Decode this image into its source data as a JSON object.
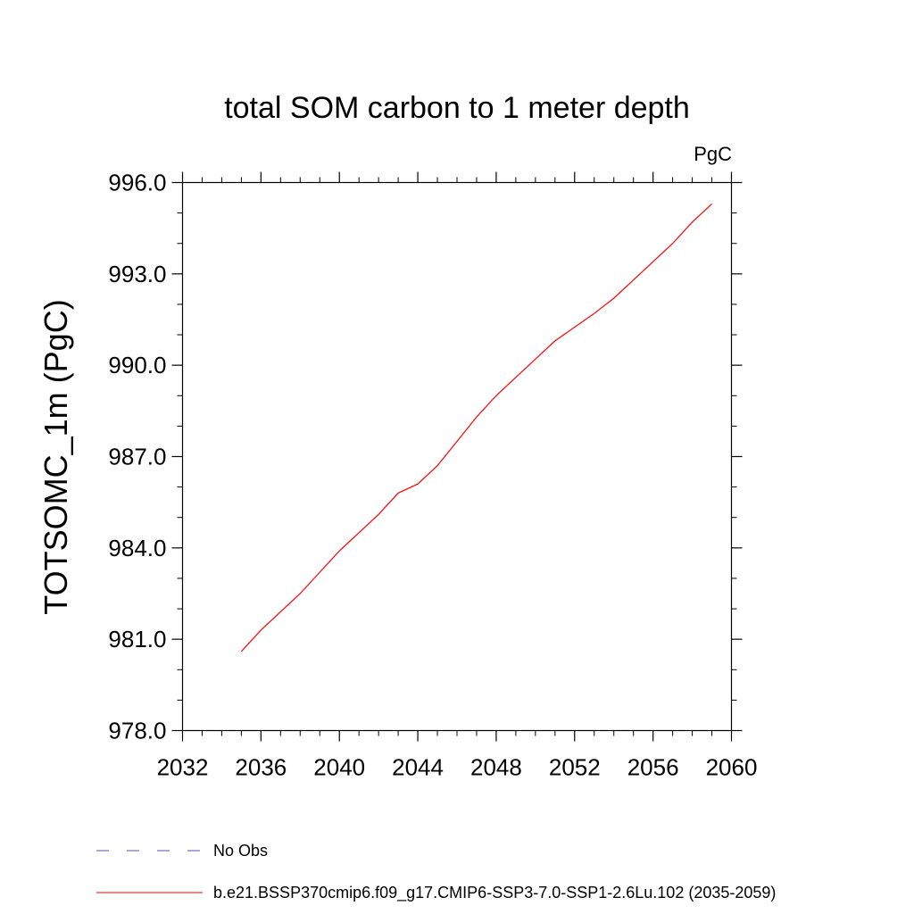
{
  "chart_data": {
    "type": "line",
    "title": "total SOM carbon to 1 meter depth",
    "units": "PgC",
    "ylabel": "TOTSOMC_1m  (PgC)",
    "xlabel": "",
    "xlim": [
      2032,
      2060
    ],
    "ylim": [
      978.0,
      996.0
    ],
    "x_ticks": [
      "2032",
      "2036",
      "2040",
      "2044",
      "2048",
      "2052",
      "2056",
      "2060"
    ],
    "y_ticks": [
      "978.0",
      "981.0",
      "984.0",
      "987.0",
      "990.0",
      "993.0",
      "996.0"
    ],
    "grid": false,
    "legend_position": "bottom",
    "legend": [
      {
        "label": "No Obs",
        "color": "#5b4fa8",
        "dash": "dashed"
      },
      {
        "label": "b.e21.BSSP370cmip6.f09_g17.CMIP6-SSP3-7.0-SSP1-2.6Lu.102 (2035-2059)",
        "color": "#ff0000",
        "dash": "solid"
      }
    ],
    "series": [
      {
        "name": "b.e21.BSSP370cmip6.f09_g17.CMIP6-SSP3-7.0-SSP1-2.6Lu.102 (2035-2059)",
        "color": "#ff0000",
        "x": [
          2035,
          2036,
          2037,
          2038,
          2039,
          2040,
          2041,
          2042,
          2043,
          2044,
          2045,
          2046,
          2047,
          2048,
          2049,
          2050,
          2051,
          2052,
          2053,
          2054,
          2055,
          2056,
          2057,
          2058,
          2059
        ],
        "values": [
          980.6,
          981.3,
          981.9,
          982.5,
          983.2,
          983.9,
          984.5,
          985.1,
          985.8,
          986.1,
          986.7,
          987.5,
          988.3,
          989.0,
          989.6,
          990.2,
          990.8,
          991.25,
          991.7,
          992.2,
          992.8,
          993.4,
          994.0,
          994.7,
          995.3
        ]
      }
    ]
  }
}
